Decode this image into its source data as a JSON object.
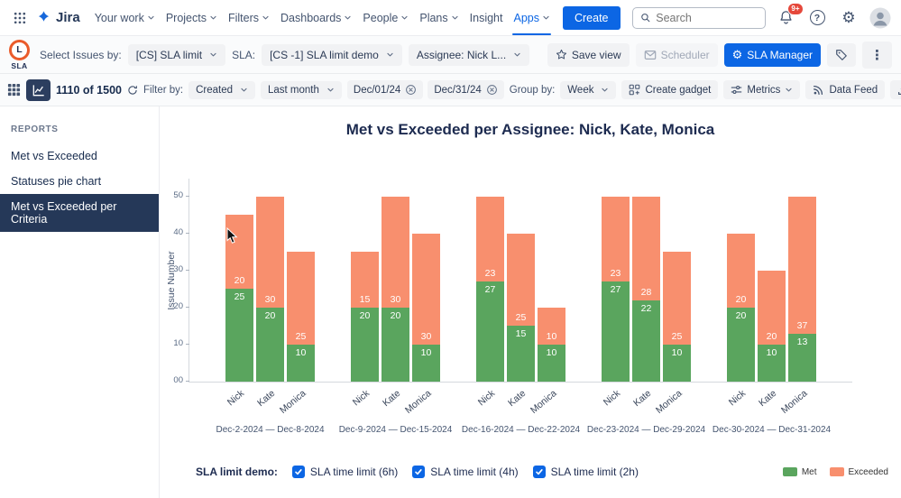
{
  "topnav": {
    "product": "Jira",
    "items": [
      {
        "label": "Your work",
        "chevron": true,
        "active": false
      },
      {
        "label": "Projects",
        "chevron": true,
        "active": false
      },
      {
        "label": "Filters",
        "chevron": true,
        "active": false
      },
      {
        "label": "Dashboards",
        "chevron": true,
        "active": false
      },
      {
        "label": "People",
        "chevron": true,
        "active": false
      },
      {
        "label": "Plans",
        "chevron": true,
        "active": false
      },
      {
        "label": "Insight",
        "chevron": false,
        "active": false
      },
      {
        "label": "Apps",
        "chevron": true,
        "active": true
      }
    ],
    "create_label": "Create",
    "search_placeholder": "Search",
    "notification_badge": "9+"
  },
  "sla_toolbar": {
    "logo_letter": "L",
    "logo_text": "SLA",
    "select_issues_label": "Select Issues by:",
    "issues_filter_value": "[CS] SLA limit",
    "sla_label": "SLA:",
    "sla_value": "[CS -1] SLA limit demo",
    "assignee_value": "Assignee: Nick L...",
    "save_view_label": "Save view",
    "scheduler_label": "Scheduler",
    "sla_manager_label": "SLA Manager"
  },
  "view_toolbar": {
    "count_text": "1110 of 1500",
    "filter_by_label": "Filter by:",
    "filter_field_value": "Created",
    "period_value": "Last month",
    "date_chips": [
      "Dec/01/24",
      "Dec/31/24"
    ],
    "group_by_label": "Group by:",
    "group_value": "Week",
    "create_gadget_label": "Create gadget",
    "metrics_label": "Metrics",
    "data_feed_label": "Data Feed",
    "export_label": "Export"
  },
  "sidebar": {
    "heading": "REPORTS",
    "items": [
      {
        "label": "Met vs Exceeded",
        "active": false
      },
      {
        "label": "Statuses pie chart",
        "active": false
      },
      {
        "label": "Met vs Exceeded per Criteria",
        "active": true
      }
    ]
  },
  "chart_data": {
    "type": "bar",
    "stacked": true,
    "title": "Met vs Exceeded per Assignee: Nick, Kate, Monica",
    "ylabel": "Issue Number",
    "ylim": [
      0,
      55
    ],
    "yticks": [
      {
        "label": "00",
        "value": 0
      },
      {
        "label": "10",
        "value": 10
      },
      {
        "label": "20",
        "value": 20
      },
      {
        "label": "30",
        "value": 30
      },
      {
        "label": "40",
        "value": 40
      },
      {
        "label": "50",
        "value": 50
      }
    ],
    "series_colors": {
      "met": "#5aa55e",
      "exceeded": "#f88f6e"
    },
    "legend": [
      {
        "name": "Met",
        "key": "met"
      },
      {
        "name": "Exceeded",
        "key": "exceeded"
      }
    ],
    "legend_position": "bottom-right",
    "grid": false,
    "groups": [
      {
        "range": "Dec-2-2024 — Dec-8-2024",
        "bars": [
          {
            "assignee": "Nick",
            "met": 25,
            "exceeded": 20
          },
          {
            "assignee": "Kate",
            "met": 20,
            "exceeded": 30
          },
          {
            "assignee": "Monica",
            "met": 10,
            "exceeded": 25
          }
        ]
      },
      {
        "range": "Dec-9-2024 — Dec-15-2024",
        "bars": [
          {
            "assignee": "Nick",
            "met": 20,
            "exceeded": 15
          },
          {
            "assignee": "Kate",
            "met": 20,
            "exceeded": 30
          },
          {
            "assignee": "Monica",
            "met": 10,
            "exceeded": 30
          }
        ]
      },
      {
        "range": "Dec-16-2024 — Dec-22-2024",
        "bars": [
          {
            "assignee": "Nick",
            "met": 27,
            "exceeded": 23
          },
          {
            "assignee": "Kate",
            "met": 15,
            "exceeded": 25
          },
          {
            "assignee": "Monica",
            "met": 10,
            "exceeded": 10
          }
        ]
      },
      {
        "range": "Dec-23-2024 — Dec-29-2024",
        "bars": [
          {
            "assignee": "Nick",
            "met": 27,
            "exceeded": 23
          },
          {
            "assignee": "Kate",
            "met": 22,
            "exceeded": 28
          },
          {
            "assignee": "Monica",
            "met": 10,
            "exceeded": 25
          }
        ]
      },
      {
        "range": "Dec-30-2024 — Dec-31-2024",
        "bars": [
          {
            "assignee": "Nick",
            "met": 20,
            "exceeded": 20
          },
          {
            "assignee": "Kate",
            "met": 10,
            "exceeded": 20
          },
          {
            "assignee": "Monica",
            "met": 13,
            "exceeded": 37
          }
        ]
      }
    ]
  },
  "footer": {
    "label": "SLA limit demo:",
    "checkboxes": [
      {
        "label": "SLA time limit (6h)",
        "checked": true
      },
      {
        "label": "SLA time limit (4h)",
        "checked": true
      },
      {
        "label": "SLA time limit (2h)",
        "checked": true
      }
    ]
  },
  "colors": {
    "accent": "#0c66e4",
    "navy": "#1d2b50",
    "met": "#5aa55e",
    "exceeded": "#f88f6e"
  }
}
